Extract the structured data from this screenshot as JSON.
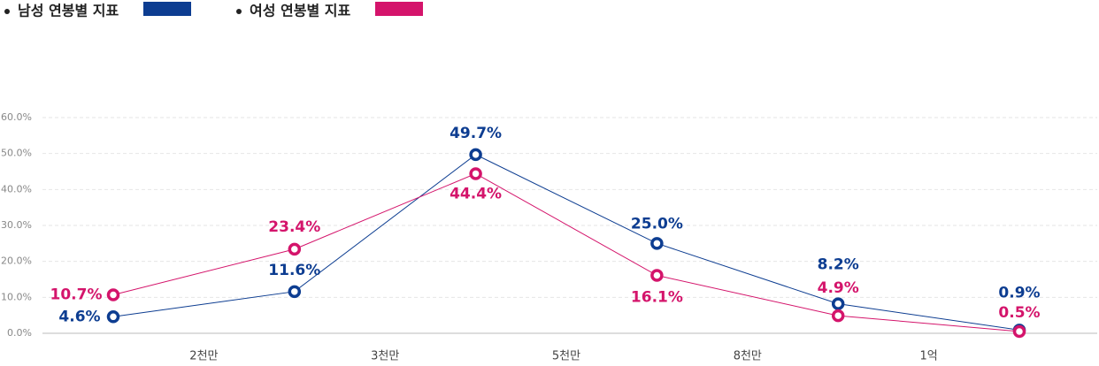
{
  "chart_data": {
    "type": "line",
    "x_labels": [
      "2천만",
      "3천만",
      "5천만",
      "8천만",
      "1억"
    ],
    "series": [
      {
        "name": "남성 연봉별 지표",
        "color": "#0d3d91",
        "values": [
          4.6,
          11.6,
          49.7,
          25.0,
          8.2,
          0.9
        ],
        "value_labels": [
          "4.6%",
          "11.6%",
          "49.7%",
          "25.0%",
          "8.2%",
          "0.9%"
        ]
      },
      {
        "name": "여성 연봉별 지표",
        "color": "#d4146b",
        "values": [
          10.7,
          23.4,
          44.4,
          16.1,
          4.9,
          0.5
        ],
        "value_labels": [
          "10.7%",
          "23.4%",
          "44.4%",
          "16.1%",
          "4.9%",
          "0.5%"
        ]
      }
    ],
    "ylim": [
      0,
      60
    ],
    "yticks": [
      {
        "value": 0,
        "label": "0.0%"
      },
      {
        "value": 10,
        "label": "10.0%"
      },
      {
        "value": 20,
        "label": "20.0%"
      },
      {
        "value": 30,
        "label": "30.0%"
      },
      {
        "value": 40,
        "label": "40.0%"
      },
      {
        "value": 50,
        "label": "50.0%"
      },
      {
        "value": 60,
        "label": "60.0%"
      }
    ],
    "grid": true
  }
}
